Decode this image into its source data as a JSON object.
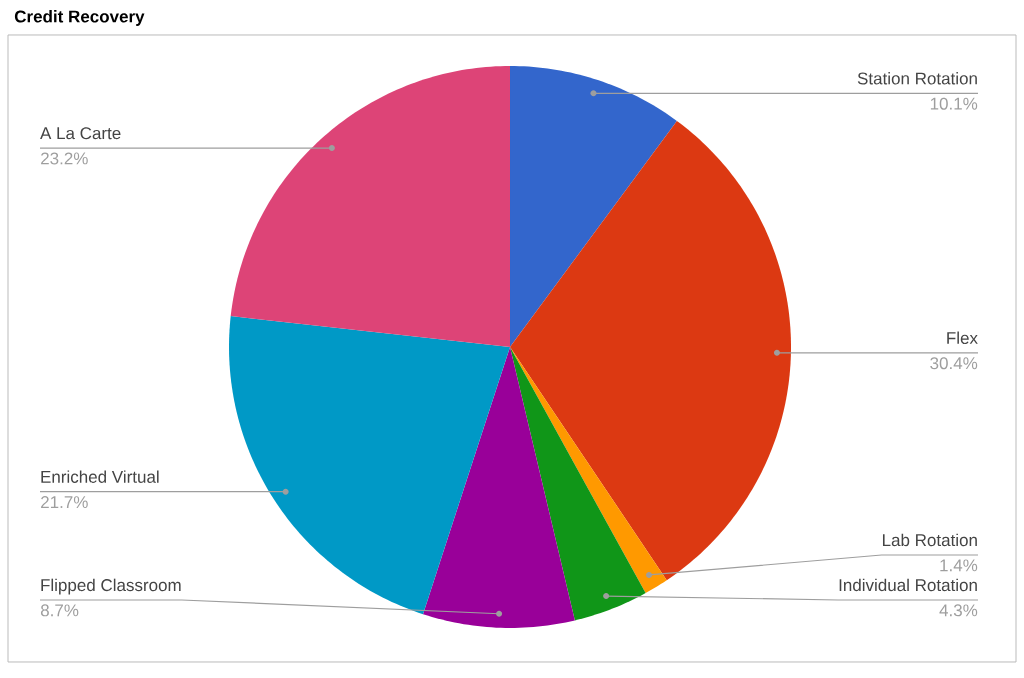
{
  "chart_data": {
    "type": "pie",
    "title": "Credit Recovery",
    "categories": [
      "Station Rotation",
      "Flex",
      "Lab Rotation",
      "Individual Rotation",
      "Flipped Classroom",
      "Enriched Virtual",
      "A La Carte"
    ],
    "values": [
      10.1,
      30.4,
      1.4,
      4.3,
      8.7,
      21.7,
      23.2
    ],
    "value_labels": [
      "10.1%",
      "30.4%",
      "1.4%",
      "4.3%",
      "8.7%",
      "21.7%",
      "23.2%"
    ],
    "colors": [
      "#3366cc",
      "#dc3912",
      "#ff9900",
      "#109618",
      "#990099",
      "#0099c6",
      "#dd4477"
    ]
  }
}
